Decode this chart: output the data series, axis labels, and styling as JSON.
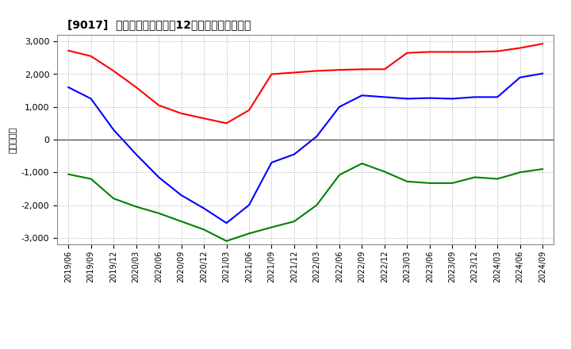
{
  "title": "[9017]  キャッシュフローの12か月移動合計の推移",
  "ylabel": "（百万円）",
  "background_color": "#ffffff",
  "grid_color": "#aaaaaa",
  "x_labels": [
    "2019/06",
    "2019/09",
    "2019/12",
    "2020/03",
    "2020/06",
    "2020/09",
    "2020/12",
    "2021/03",
    "2021/06",
    "2021/09",
    "2021/12",
    "2022/03",
    "2022/06",
    "2022/09",
    "2022/12",
    "2023/03",
    "2023/06",
    "2023/09",
    "2023/12",
    "2024/03",
    "2024/06",
    "2024/09"
  ],
  "operating_cf": [
    2720,
    2550,
    2100,
    1600,
    1050,
    800,
    650,
    500,
    900,
    2000,
    2050,
    2100,
    2130,
    2150,
    2150,
    2650,
    2680,
    2680,
    2680,
    2700,
    2800,
    2930
  ],
  "investing_cf": [
    -1060,
    -1200,
    -1800,
    -2050,
    -2250,
    -2500,
    -2750,
    -3100,
    -2870,
    -2680,
    -2500,
    -2000,
    -1080,
    -730,
    -980,
    -1280,
    -1330,
    -1330,
    -1150,
    -1200,
    -1000,
    -900
  ],
  "free_cf": [
    1600,
    1250,
    300,
    -450,
    -1150,
    -1700,
    -2100,
    -2550,
    -2000,
    -700,
    -450,
    100,
    1000,
    1350,
    1300,
    1250,
    1270,
    1250,
    1300,
    1300,
    1900,
    2020
  ],
  "operating_color": "#ff0000",
  "investing_color": "#008000",
  "free_color": "#0000ff",
  "ylim": [
    -3200,
    3200
  ],
  "yticks": [
    -3000,
    -2000,
    -1000,
    0,
    1000,
    2000,
    3000
  ]
}
